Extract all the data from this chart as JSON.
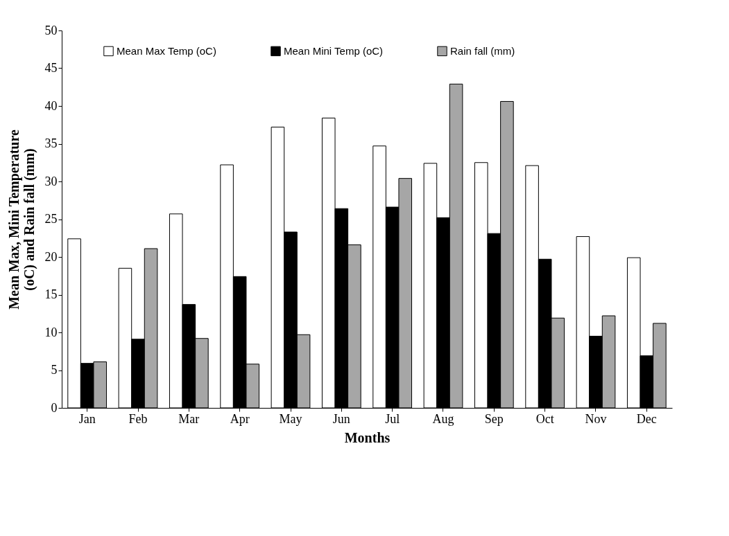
{
  "chart_data": {
    "type": "bar",
    "xlabel": "Months",
    "ylabel": "Mean Max, Mini Temperature (oC) and Rain fall (mm)",
    "categories": [
      "Jan",
      "Feb",
      "Mar",
      "Apr",
      "May",
      "Jun",
      "Jul",
      "Aug",
      "Sep",
      "Oct",
      "Nov",
      "Dec"
    ],
    "series": [
      {
        "name": "Mean Max Temp (oC)",
        "color": "#ffffff",
        "values": [
          22.4,
          18.5,
          25.7,
          32.2,
          37.2,
          38.4,
          34.7,
          32.4,
          32.5,
          32.1,
          22.7,
          19.9
        ]
      },
      {
        "name": "Mean Mini Temp (oC)",
        "color": "#000000",
        "values": [
          5.9,
          9.1,
          13.7,
          17.4,
          23.3,
          26.4,
          26.6,
          25.2,
          23.1,
          19.7,
          9.5,
          6.9
        ]
      },
      {
        "name": "Rain fall (mm)",
        "color": "#a6a6a6",
        "values": [
          6.1,
          21.1,
          9.2,
          5.8,
          9.7,
          21.6,
          30.4,
          42.9,
          40.6,
          11.9,
          12.2,
          11.2
        ]
      }
    ],
    "ylim": [
      0,
      50
    ],
    "yticks": [
      0,
      5,
      10,
      15,
      20,
      25,
      30,
      35,
      40,
      45,
      50
    ],
    "grid": false,
    "legend": "top"
  }
}
